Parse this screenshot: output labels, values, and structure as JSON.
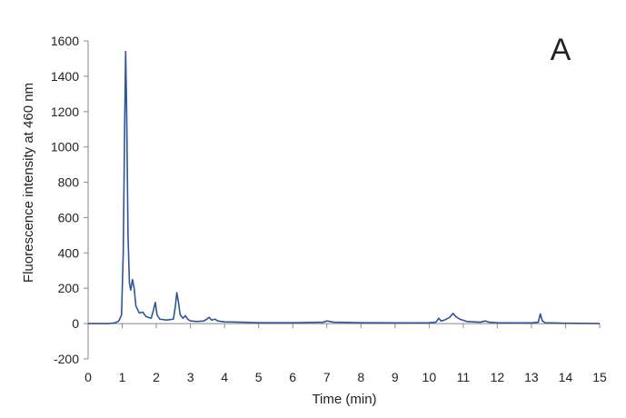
{
  "panel_label": "A",
  "chart_data": {
    "type": "line",
    "title": "",
    "xlabel": "Time (min)",
    "ylabel": "Fluorescence intensity at 460 nm",
    "xlim": [
      0,
      15
    ],
    "ylim": [
      -200,
      1600
    ],
    "xticks": [
      0,
      1,
      2,
      3,
      4,
      5,
      6,
      7,
      8,
      9,
      10,
      11,
      12,
      13,
      14,
      15
    ],
    "yticks": [
      -200,
      0,
      200,
      400,
      600,
      800,
      1000,
      1200,
      1400,
      1600
    ],
    "grid": false,
    "legend": "none",
    "line_color": "#2e5597",
    "series": [
      {
        "points": [
          [
            0.0,
            0
          ],
          [
            0.6,
            0
          ],
          [
            0.8,
            5
          ],
          [
            0.9,
            15
          ],
          [
            0.98,
            50
          ],
          [
            1.03,
            400
          ],
          [
            1.07,
            1100
          ],
          [
            1.1,
            1540
          ],
          [
            1.13,
            1200
          ],
          [
            1.17,
            500
          ],
          [
            1.21,
            230
          ],
          [
            1.25,
            190
          ],
          [
            1.3,
            250
          ],
          [
            1.35,
            200
          ],
          [
            1.4,
            100
          ],
          [
            1.5,
            60
          ],
          [
            1.6,
            65
          ],
          [
            1.7,
            40
          ],
          [
            1.85,
            30
          ],
          [
            1.92,
            80
          ],
          [
            1.97,
            120
          ],
          [
            2.02,
            50
          ],
          [
            2.1,
            25
          ],
          [
            2.3,
            20
          ],
          [
            2.5,
            25
          ],
          [
            2.56,
            100
          ],
          [
            2.6,
            175
          ],
          [
            2.65,
            120
          ],
          [
            2.7,
            50
          ],
          [
            2.78,
            30
          ],
          [
            2.85,
            45
          ],
          [
            2.92,
            25
          ],
          [
            3.0,
            15
          ],
          [
            3.2,
            12
          ],
          [
            3.4,
            15
          ],
          [
            3.55,
            35
          ],
          [
            3.62,
            20
          ],
          [
            3.72,
            25
          ],
          [
            3.8,
            15
          ],
          [
            4.0,
            10
          ],
          [
            4.5,
            8
          ],
          [
            5.0,
            5
          ],
          [
            6.0,
            5
          ],
          [
            6.9,
            8
          ],
          [
            7.0,
            15
          ],
          [
            7.2,
            8
          ],
          [
            8.0,
            5
          ],
          [
            9.0,
            4
          ],
          [
            10.0,
            5
          ],
          [
            10.2,
            8
          ],
          [
            10.28,
            30
          ],
          [
            10.35,
            15
          ],
          [
            10.45,
            20
          ],
          [
            10.6,
            35
          ],
          [
            10.7,
            58
          ],
          [
            10.78,
            40
          ],
          [
            10.9,
            25
          ],
          [
            11.1,
            12
          ],
          [
            11.5,
            8
          ],
          [
            11.65,
            15
          ],
          [
            11.75,
            8
          ],
          [
            12.0,
            5
          ],
          [
            13.0,
            4
          ],
          [
            13.2,
            8
          ],
          [
            13.26,
            55
          ],
          [
            13.32,
            15
          ],
          [
            13.4,
            5
          ],
          [
            14.0,
            2
          ],
          [
            15.0,
            0
          ]
        ]
      }
    ]
  }
}
